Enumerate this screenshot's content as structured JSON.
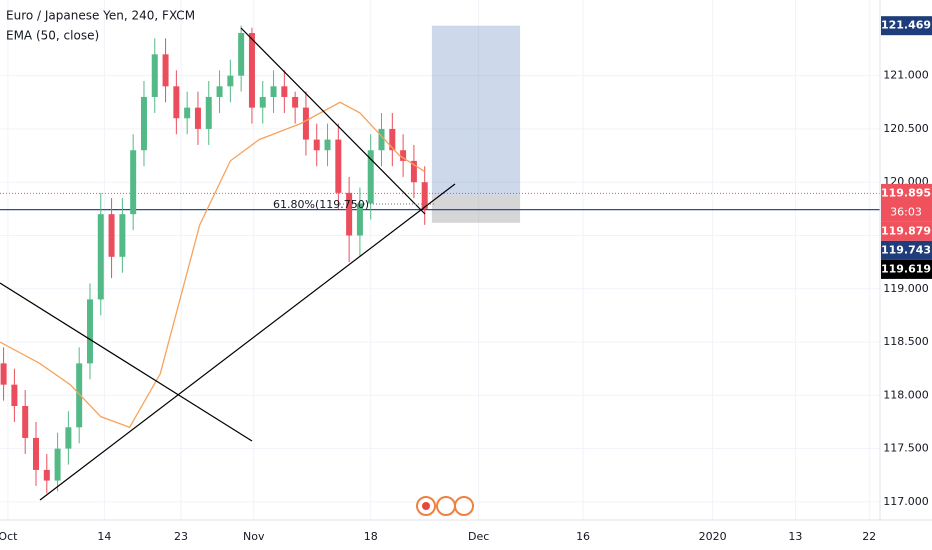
{
  "chart_data": {
    "type": "candlestick",
    "title": "Euro / Japanese Yen, 240, FXCM",
    "indicator": "EMA (50, close)",
    "annotation": "61.80%(119.750)",
    "x": [
      2,
      8,
      14,
      20,
      26,
      32,
      38,
      44,
      50,
      56,
      62,
      68,
      74,
      80,
      86,
      92,
      98,
      104,
      110,
      116,
      122,
      128,
      134,
      140,
      146,
      152,
      158,
      164,
      170,
      176,
      182,
      188,
      194,
      200,
      206,
      212,
      218,
      224,
      230,
      236
    ],
    "open": [
      118.3,
      118.1,
      117.9,
      117.6,
      117.3,
      117.2,
      117.5,
      117.7,
      118.3,
      118.9,
      119.7,
      119.3,
      119.7,
      120.3,
      120.8,
      121.2,
      120.9,
      120.6,
      120.7,
      120.5,
      120.8,
      120.9,
      121.0,
      121.4,
      120.7,
      120.8,
      120.9,
      120.8,
      120.7,
      120.4,
      120.3,
      120.4,
      119.9,
      119.5,
      119.8,
      120.3,
      120.5,
      120.3,
      120.2,
      120.0
    ],
    "high": [
      118.45,
      118.25,
      118.05,
      117.75,
      117.45,
      117.65,
      117.85,
      118.45,
      119.05,
      119.9,
      119.85,
      119.85,
      120.45,
      120.95,
      121.35,
      121.35,
      121.05,
      120.85,
      120.85,
      120.95,
      121.05,
      121.15,
      121.47,
      121.45,
      120.95,
      121.05,
      121.05,
      120.85,
      120.85,
      120.55,
      120.55,
      120.55,
      120.05,
      119.95,
      120.45,
      120.65,
      120.65,
      120.45,
      120.35,
      120.15
    ],
    "low": [
      117.95,
      117.75,
      117.45,
      117.15,
      117.08,
      117.1,
      117.35,
      117.55,
      118.15,
      118.75,
      119.1,
      119.15,
      119.55,
      120.15,
      120.65,
      120.75,
      120.45,
      120.45,
      120.35,
      120.35,
      120.65,
      120.75,
      120.85,
      120.55,
      120.55,
      120.65,
      120.65,
      120.55,
      120.25,
      120.15,
      120.15,
      119.75,
      119.25,
      119.3,
      119.65,
      120.15,
      120.15,
      120.05,
      119.85,
      119.6
    ],
    "close": [
      118.1,
      117.9,
      117.6,
      117.3,
      117.2,
      117.5,
      117.7,
      118.3,
      118.9,
      119.7,
      119.3,
      119.7,
      120.3,
      120.8,
      121.2,
      120.9,
      120.6,
      120.7,
      120.5,
      120.8,
      120.9,
      121.0,
      121.4,
      120.7,
      120.8,
      120.9,
      120.8,
      120.7,
      120.4,
      120.3,
      120.4,
      119.9,
      119.5,
      119.8,
      120.3,
      120.5,
      120.3,
      120.2,
      120.0,
      119.75
    ],
    "up_color": "#53b987",
    "down_color": "#eb4d5c",
    "ema": {
      "color": "#f7a35c",
      "x": [
        0,
        22,
        39,
        56,
        72,
        89,
        111,
        128,
        144,
        167,
        189,
        200,
        222,
        236
      ],
      "values": [
        118.5,
        118.3,
        118.1,
        117.8,
        117.7,
        118.2,
        119.6,
        120.2,
        120.4,
        120.55,
        120.75,
        120.65,
        120.25,
        120.1
      ]
    },
    "position_x": [
      240,
      289
    ],
    "price_labels": [
      {
        "value": 121.469,
        "label": "121.469",
        "color": "#1f3d7a"
      },
      {
        "value": 119.895,
        "label": "119.895",
        "color": "#f0525d",
        "countdown": "36:03"
      },
      {
        "value": 119.879,
        "label": "119.879",
        "color": "#f0525d"
      },
      {
        "value": 119.743,
        "label": "119.743",
        "color": "#1f3d7a"
      },
      {
        "value": 119.619,
        "label": "119.619",
        "color": "#000000"
      }
    ],
    "xlim": [
      0,
      489
    ],
    "ylim": [
      116.83,
      121.71
    ],
    "xticks": [
      {
        "value": 4.4,
        "label": "Oct"
      },
      {
        "value": 58,
        "label": "14"
      },
      {
        "value": 100.6,
        "label": "23"
      },
      {
        "value": 141,
        "label": "Nov"
      },
      {
        "value": 206,
        "label": "18"
      },
      {
        "value": 266,
        "label": "Dec"
      },
      {
        "value": 324,
        "label": "16"
      },
      {
        "value": 396,
        "label": "2020"
      },
      {
        "value": 442,
        "label": "13"
      },
      {
        "value": 483,
        "label": "22"
      }
    ],
    "yticks": [
      {
        "value": 117,
        "label": "117.000"
      },
      {
        "value": 117.5,
        "label": "117.500"
      },
      {
        "value": 118,
        "label": "118.000"
      },
      {
        "value": 118.5,
        "label": "118.500"
      },
      {
        "value": 119,
        "label": "119.000"
      },
      {
        "value": 119.5,
        "label": "119.500"
      },
      {
        "value": 120,
        "label": "120.000"
      },
      {
        "value": 120.5,
        "label": "120.500"
      },
      {
        "value": 121,
        "label": "121.000"
      }
    ],
    "grid": true
  }
}
